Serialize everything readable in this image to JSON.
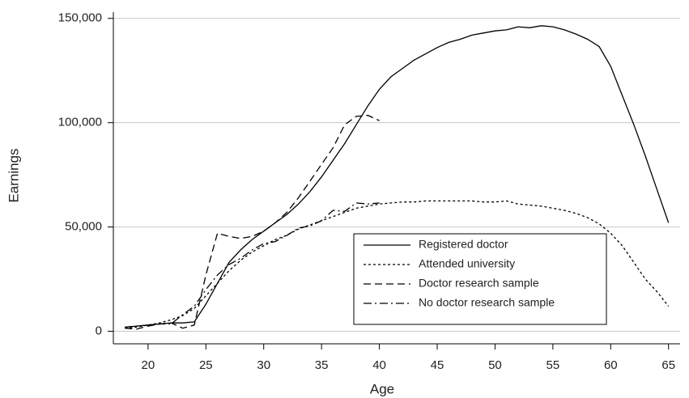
{
  "chart_data": {
    "type": "line",
    "x_label": "Age",
    "y_label": "Earnings",
    "x": [
      18,
      19,
      20,
      21,
      22,
      23,
      24,
      25,
      26,
      27,
      28,
      29,
      30,
      31,
      32,
      33,
      34,
      35,
      36,
      37,
      38,
      39,
      40,
      41,
      42,
      43,
      44,
      45,
      46,
      47,
      48,
      49,
      50,
      51,
      52,
      53,
      54,
      55,
      56,
      57,
      58,
      59,
      60,
      61,
      62,
      63,
      64,
      65
    ],
    "series": [
      {
        "name": "Registered doctor",
        "color": "#000000",
        "dash": "solid",
        "values": [
          2000,
          2500,
          3000,
          3500,
          4000,
          4000,
          4500,
          13000,
          23000,
          33000,
          39000,
          44000,
          48000,
          52000,
          56000,
          61000,
          67000,
          74000,
          82000,
          90000,
          99000,
          108000,
          116000,
          122000,
          126000,
          130000,
          133000,
          136000,
          138500,
          140000,
          142000,
          143000,
          144000,
          144500,
          146000,
          145500,
          146500,
          146000,
          144500,
          142500,
          140000,
          136500,
          127000,
          113000,
          99000,
          84000,
          68000,
          52000
        ]
      },
      {
        "name": "Attended university",
        "color": "#000000",
        "dash": "dotted",
        "values": [
          1500,
          2000,
          3000,
          4000,
          5500,
          7500,
          11000,
          17000,
          23000,
          29000,
          34000,
          38000,
          41000,
          44000,
          46000,
          49000,
          51000,
          53000,
          55000,
          57000,
          59000,
          60000,
          61000,
          61500,
          62000,
          62000,
          62500,
          62500,
          62500,
          62500,
          62500,
          62000,
          62000,
          62500,
          61000,
          60500,
          60000,
          59000,
          58000,
          56500,
          54500,
          51500,
          47000,
          41000,
          33000,
          25000,
          19000,
          12000
        ]
      },
      {
        "name": "Doctor research sample",
        "color": "#000000",
        "dash": "dashed",
        "values": [
          1500,
          1000,
          2500,
          3500,
          4000,
          1500,
          3000,
          27000,
          47000,
          45500,
          44500,
          45500,
          48000,
          52000,
          57000,
          64000,
          72000,
          80000,
          88000,
          99000,
          103000,
          103500,
          101000,
          null,
          null,
          null,
          null,
          null,
          null,
          null,
          null,
          null,
          null,
          null,
          null,
          null,
          null,
          null,
          null,
          null,
          null,
          null,
          null,
          null,
          null,
          null,
          null,
          null
        ]
      },
      {
        "name": "No doctor research sample",
        "color": "#000000",
        "dash": "dashdot",
        "values": [
          2000,
          2500,
          3000,
          3500,
          3500,
          8000,
          12000,
          20000,
          27000,
          32000,
          35000,
          39000,
          42000,
          43000,
          46000,
          49500,
          50500,
          53000,
          58000,
          57500,
          61500,
          61000,
          61500,
          null,
          null,
          null,
          null,
          null,
          null,
          null,
          null,
          null,
          null,
          null,
          null,
          null,
          null,
          null,
          null,
          null,
          null,
          null,
          null,
          null,
          null,
          null,
          null,
          null
        ]
      }
    ],
    "xlim": [
      17,
      66
    ],
    "xticks": [
      20,
      25,
      30,
      35,
      40,
      45,
      50,
      55,
      60,
      65
    ],
    "ylim": [
      -6000,
      153000
    ],
    "yticks": [
      0,
      {
        "value": 50000,
        "label": "50,000"
      },
      {
        "value": 100000,
        "label": "100,000"
      },
      {
        "value": 150000,
        "label": "150,000"
      }
    ],
    "grid": true
  }
}
